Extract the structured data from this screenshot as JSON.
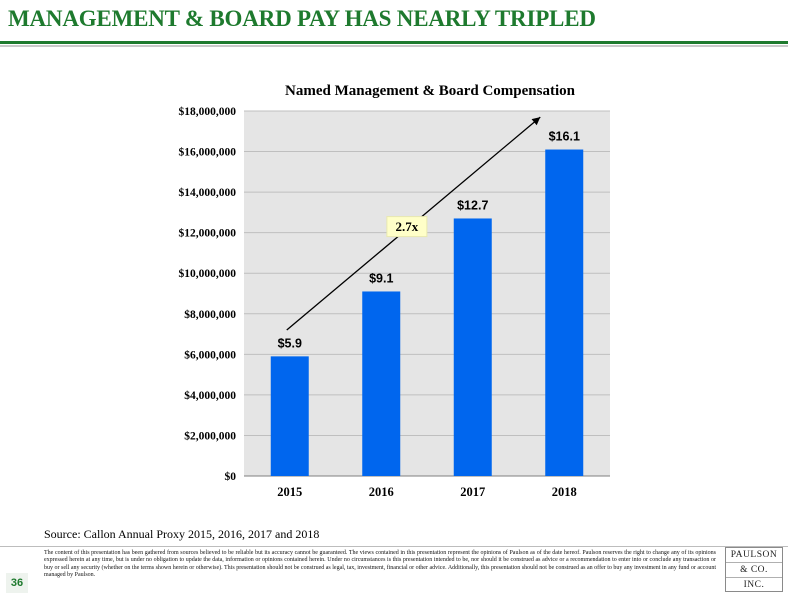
{
  "header": {
    "title": "MANAGEMENT & BOARD PAY HAS NEARLY TRIPLED"
  },
  "chart_data": {
    "type": "bar",
    "title": "Named Management & Board Compensation",
    "categories": [
      "2015",
      "2016",
      "2017",
      "2018"
    ],
    "values": [
      5900000,
      9100000,
      12700000,
      16100000
    ],
    "data_labels": [
      "$5.9",
      "$9.1",
      "$12.7",
      "$16.1"
    ],
    "y_ticks": [
      "$0",
      "$2,000,000",
      "$4,000,000",
      "$6,000,000",
      "$8,000,000",
      "$10,000,000",
      "$12,000,000",
      "$14,000,000",
      "$16,000,000",
      "$18,000,000"
    ],
    "ylim": [
      0,
      18000000
    ],
    "xlabel": "",
    "ylabel": "",
    "grid": true,
    "annotation": {
      "text": "2.7x",
      "kind": "trend-arrow",
      "from_category": "2015",
      "to_category": "2018",
      "from_value": 7200000,
      "to_value": 17700000,
      "label_value": 12300000
    },
    "colors": {
      "bar": "#0066ee",
      "plot_background": "#e5e5e5",
      "annotation_box": "#ffffc8"
    }
  },
  "footer": {
    "source": "Source: Callon Annual Proxy 2015, 2016, 2017 and 2018",
    "page_number": "36",
    "disclaimer": "The content of this presentation has been gathered from sources believed to be reliable but its accuracy cannot be guaranteed. The views contained in this presentation represent the opinions of Paulson as of the date hereof. Paulson reserves the right to change any of its opinions expressed herein at any time, but is under no obligation to update the data, information or opinions contained herein. Under no circumstances is this presentation intended to be, nor should it be construed as advice or a recommendation to enter into or conclude any transaction or buy or sell any security (whether on the terms shown herein or otherwise). This presentation should not be construed as legal, tax, investment, financial or other advice. Additionally, this presentation should not be construed as an offer to buy any investment in any fund or account managed by Paulson.",
    "logo": [
      "PAULSON",
      "& CO.",
      "INC."
    ]
  }
}
